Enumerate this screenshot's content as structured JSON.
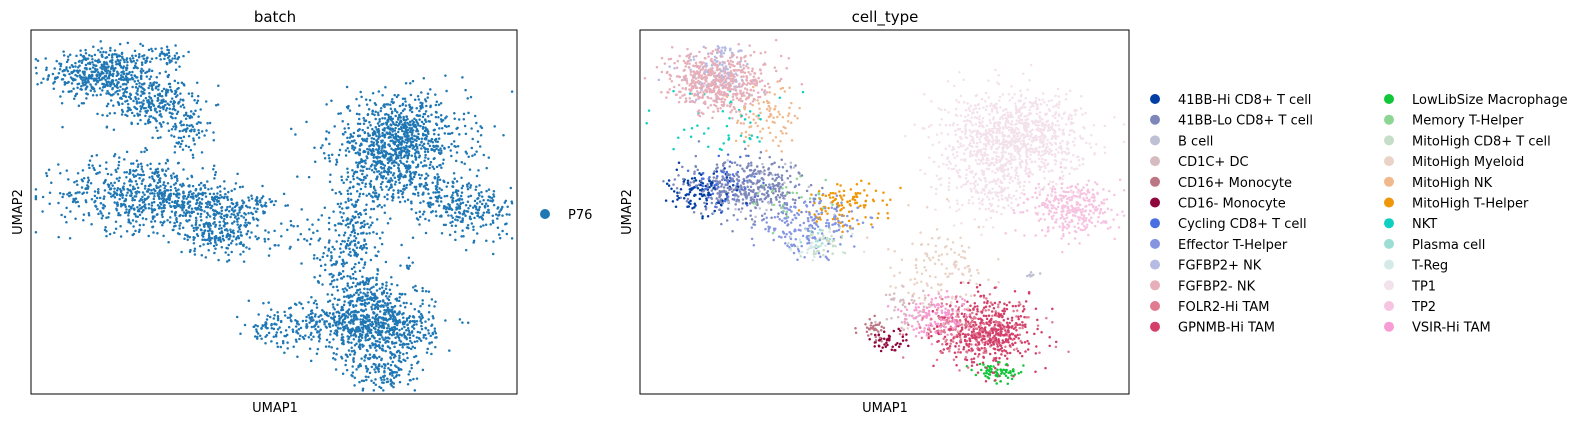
{
  "chart_data": [
    {
      "type": "scatter",
      "title": "batch",
      "xlabel": "UMAP1",
      "ylabel": "UMAP2",
      "grid": false,
      "legend_placement": "right",
      "legend": [
        {
          "label": "P76",
          "color": "#1f77b4"
        }
      ],
      "series": [
        {
          "name": "P76",
          "color": "#1f77b4",
          "clusters": [
            {
              "cx": 1.5,
              "cy": 8.8,
              "sx": 0.55,
              "sy": 0.35,
              "n": 500
            },
            {
              "cx": 2.5,
              "cy": 8.0,
              "sx": 0.45,
              "sy": 0.35,
              "n": 260
            },
            {
              "cx": 3.2,
              "cy": 7.2,
              "sx": 0.25,
              "sy": 0.35,
              "n": 80
            },
            {
              "cx": 2.8,
              "cy": 9.3,
              "sx": 0.2,
              "sy": 0.15,
              "n": 40
            },
            {
              "cx": 2.2,
              "cy": 5.5,
              "sx": 0.8,
              "sy": 0.5,
              "n": 550
            },
            {
              "cx": 3.5,
              "cy": 5.3,
              "sx": 0.5,
              "sy": 0.3,
              "n": 180
            },
            {
              "cx": 3.8,
              "cy": 4.5,
              "sx": 0.4,
              "sy": 0.35,
              "n": 240
            },
            {
              "cx": 4.5,
              "cy": 5.1,
              "sx": 0.3,
              "sy": 0.25,
              "n": 70
            },
            {
              "cx": 6.0,
              "cy": 4.4,
              "sx": 0.7,
              "sy": 0.4,
              "n": 60
            },
            {
              "cx": 6.3,
              "cy": 3.6,
              "sx": 0.25,
              "sy": 0.35,
              "n": 60
            },
            {
              "cx": 7.6,
              "cy": 7.0,
              "sx": 0.7,
              "sy": 0.6,
              "n": 850
            },
            {
              "cx": 7.2,
              "cy": 6.0,
              "sx": 0.4,
              "sy": 0.5,
              "n": 200
            },
            {
              "cx": 8.5,
              "cy": 5.4,
              "sx": 0.6,
              "sy": 0.3,
              "n": 180
            },
            {
              "cx": 9.1,
              "cy": 4.9,
              "sx": 0.4,
              "sy": 0.3,
              "n": 130
            },
            {
              "cx": 6.6,
              "cy": 5.0,
              "sx": 0.25,
              "sy": 0.5,
              "n": 80
            },
            {
              "cx": 6.7,
              "cy": 4.0,
              "sx": 0.2,
              "sy": 0.5,
              "n": 70
            },
            {
              "cx": 7.2,
              "cy": 1.8,
              "sx": 0.55,
              "sy": 0.45,
              "n": 650
            },
            {
              "cx": 6.0,
              "cy": 2.0,
              "sx": 0.6,
              "sy": 0.35,
              "n": 220
            },
            {
              "cx": 4.9,
              "cy": 1.8,
              "sx": 0.2,
              "sy": 0.2,
              "n": 50
            },
            {
              "cx": 7.2,
              "cy": 0.6,
              "sx": 0.35,
              "sy": 0.25,
              "n": 120
            },
            {
              "cx": 6.9,
              "cy": 2.8,
              "sx": 0.3,
              "sy": 0.3,
              "n": 120
            },
            {
              "cx": 7.7,
              "cy": 3.5,
              "sx": 0.1,
              "sy": 0.1,
              "n": 8
            },
            {
              "cx": 8.0,
              "cy": 2.9,
              "sx": 0.1,
              "sy": 0.05,
              "n": 8
            }
          ]
        }
      ],
      "xlim": [
        0.0,
        10.0
      ],
      "ylim": [
        0.0,
        10.0
      ]
    },
    {
      "type": "scatter",
      "title": "cell_type",
      "xlabel": "UMAP1",
      "ylabel": "UMAP2",
      "grid": false,
      "legend_placement": "right",
      "legend_columns": 2,
      "legend": [
        {
          "label": "41BB-Hi CD8+ T cell",
          "color": "#023fa5"
        },
        {
          "label": "41BB-Lo CD8+ T cell",
          "color": "#7d87b9"
        },
        {
          "label": "B cell",
          "color": "#bec1d4"
        },
        {
          "label": "CD1C+ DC",
          "color": "#d6bcc0"
        },
        {
          "label": "CD16+ Monocyte",
          "color": "#bb7784"
        },
        {
          "label": "CD16- Monocyte",
          "color": "#8e063b"
        },
        {
          "label": "Cycling CD8+ T cell",
          "color": "#4a6fe3"
        },
        {
          "label": "Effector T-Helper",
          "color": "#8595e1"
        },
        {
          "label": "FGFBP2+ NK",
          "color": "#b5bbe3"
        },
        {
          "label": "FGFBP2- NK",
          "color": "#e6afb9"
        },
        {
          "label": "FOLR2-Hi TAM",
          "color": "#e07b91"
        },
        {
          "label": "GPNMB-Hi TAM",
          "color": "#d33f6a"
        },
        {
          "label": "LowLibSize Macrophage",
          "color": "#11c638"
        },
        {
          "label": "Memory T-Helper",
          "color": "#8dd593"
        },
        {
          "label": "MitoHigh CD8+ T cell",
          "color": "#c6dec7"
        },
        {
          "label": "MitoHigh Myeloid",
          "color": "#ead3c6"
        },
        {
          "label": "MitoHigh NK",
          "color": "#f0b98d"
        },
        {
          "label": "MitoHigh T-Helper",
          "color": "#ef9708"
        },
        {
          "label": "NKT",
          "color": "#0fcfc0"
        },
        {
          "label": "Plasma cell",
          "color": "#9cded6"
        },
        {
          "label": "T-Reg",
          "color": "#d5eae7"
        },
        {
          "label": "TP1",
          "color": "#f3e1eb"
        },
        {
          "label": "TP2",
          "color": "#f6c4e1"
        },
        {
          "label": "VSIR-Hi TAM",
          "color": "#f79cd4"
        }
      ],
      "series": [
        {
          "name": "41BB-Hi CD8+ T cell",
          "color": "#023fa5",
          "clusters": [
            {
              "cx": 1.3,
              "cy": 5.6,
              "sx": 0.35,
              "sy": 0.3,
              "n": 120
            }
          ]
        },
        {
          "name": "41BB-Lo CD8+ T cell",
          "color": "#7d87b9",
          "clusters": [
            {
              "cx": 2.2,
              "cy": 5.7,
              "sx": 0.6,
              "sy": 0.4,
              "n": 380
            }
          ]
        },
        {
          "name": "B cell",
          "color": "#bec1d4",
          "clusters": [
            {
              "cx": 2.6,
              "cy": 5.6,
              "sx": 0.5,
              "sy": 0.4,
              "n": 40
            },
            {
              "cx": 8.0,
              "cy": 3.3,
              "sx": 0.1,
              "sy": 0.05,
              "n": 8
            }
          ]
        },
        {
          "name": "CD1C+ DC",
          "color": "#d6bcc0",
          "clusters": [
            {
              "cx": 5.5,
              "cy": 2.3,
              "sx": 0.3,
              "sy": 0.3,
              "n": 50
            }
          ]
        },
        {
          "name": "CD16+ Monocyte",
          "color": "#bb7784",
          "clusters": [
            {
              "cx": 4.8,
              "cy": 1.8,
              "sx": 0.15,
              "sy": 0.15,
              "n": 35
            }
          ]
        },
        {
          "name": "CD16- Monocyte",
          "color": "#8e063b",
          "clusters": [
            {
              "cx": 5.1,
              "cy": 1.5,
              "sx": 0.2,
              "sy": 0.15,
              "n": 45
            }
          ]
        },
        {
          "name": "Cycling CD8+ T cell",
          "color": "#4a6fe3",
          "clusters": [
            {
              "cx": 1.7,
              "cy": 5.8,
              "sx": 0.4,
              "sy": 0.3,
              "n": 60
            }
          ]
        },
        {
          "name": "Effector T-Helper",
          "color": "#8595e1",
          "clusters": [
            {
              "cx": 3.5,
              "cy": 4.6,
              "sx": 0.5,
              "sy": 0.4,
              "n": 200
            }
          ]
        },
        {
          "name": "FGFBP2+ NK",
          "color": "#b5bbe3",
          "clusters": [
            {
              "cx": 1.6,
              "cy": 8.8,
              "sx": 0.45,
              "sy": 0.3,
              "n": 80
            },
            {
              "cx": 1.7,
              "cy": 9.4,
              "sx": 0.15,
              "sy": 0.1,
              "n": 25
            }
          ]
        },
        {
          "name": "FGFBP2- NK",
          "color": "#e6afb9",
          "clusters": [
            {
              "cx": 1.6,
              "cy": 8.6,
              "sx": 0.5,
              "sy": 0.4,
              "n": 600
            }
          ]
        },
        {
          "name": "FOLR2-Hi TAM",
          "color": "#e07b91",
          "clusters": [
            {
              "cx": 6.8,
              "cy": 1.8,
              "sx": 0.6,
              "sy": 0.4,
              "n": 220
            }
          ]
        },
        {
          "name": "GPNMB-Hi TAM",
          "color": "#d33f6a",
          "clusters": [
            {
              "cx": 7.1,
              "cy": 1.7,
              "sx": 0.5,
              "sy": 0.45,
              "n": 450
            }
          ]
        },
        {
          "name": "LowLibSize Macrophage",
          "color": "#11c638",
          "clusters": [
            {
              "cx": 7.3,
              "cy": 0.6,
              "sx": 0.25,
              "sy": 0.12,
              "n": 70
            }
          ]
        },
        {
          "name": "Memory T-Helper",
          "color": "#8dd593",
          "clusters": [
            {
              "cx": 3.0,
              "cy": 5.4,
              "sx": 0.4,
              "sy": 0.4,
              "n": 30
            }
          ]
        },
        {
          "name": "MitoHigh CD8+ T cell",
          "color": "#c6dec7",
          "clusters": [
            {
              "cx": 3.8,
              "cy": 4.2,
              "sx": 0.3,
              "sy": 0.3,
              "n": 45
            }
          ]
        },
        {
          "name": "MitoHigh Myeloid",
          "color": "#ead3c6",
          "clusters": [
            {
              "cx": 6.1,
              "cy": 3.5,
              "sx": 0.5,
              "sy": 0.6,
              "n": 130
            }
          ]
        },
        {
          "name": "MitoHigh NK",
          "color": "#f0b98d",
          "clusters": [
            {
              "cx": 2.6,
              "cy": 7.6,
              "sx": 0.35,
              "sy": 0.4,
              "n": 90
            }
          ]
        },
        {
          "name": "MitoHigh T-Helper",
          "color": "#ef9708",
          "clusters": [
            {
              "cx": 4.2,
              "cy": 5.2,
              "sx": 0.4,
              "sy": 0.3,
              "n": 110
            }
          ]
        },
        {
          "name": "NKT",
          "color": "#0fcfc0",
          "clusters": [
            {
              "cx": 1.8,
              "cy": 7.6,
              "sx": 0.6,
              "sy": 0.6,
              "n": 45
            }
          ]
        },
        {
          "name": "Plasma cell",
          "color": "#9cded6",
          "clusters": [
            {
              "cx": 3.6,
              "cy": 4.3,
              "sx": 0.2,
              "sy": 0.2,
              "n": 12
            }
          ]
        },
        {
          "name": "T-Reg",
          "color": "#d5eae7",
          "clusters": [
            {
              "cx": 3.6,
              "cy": 4.0,
              "sx": 0.3,
              "sy": 0.2,
              "n": 30
            }
          ]
        },
        {
          "name": "TP1",
          "color": "#f3e1eb",
          "clusters": [
            {
              "cx": 7.6,
              "cy": 7.0,
              "sx": 0.75,
              "sy": 0.65,
              "n": 1000
            },
            {
              "cx": 7.1,
              "cy": 5.7,
              "sx": 0.4,
              "sy": 0.5,
              "n": 180
            }
          ]
        },
        {
          "name": "TP2",
          "color": "#f6c4e1",
          "clusters": [
            {
              "cx": 8.8,
              "cy": 5.1,
              "sx": 0.5,
              "sy": 0.35,
              "n": 320
            }
          ]
        },
        {
          "name": "VSIR-Hi TAM",
          "color": "#f79cd4",
          "clusters": [
            {
              "cx": 6.1,
              "cy": 2.1,
              "sx": 0.35,
              "sy": 0.3,
              "n": 150
            }
          ]
        }
      ],
      "xlim": [
        0.0,
        10.0
      ],
      "ylim": [
        0.0,
        10.0
      ]
    }
  ]
}
